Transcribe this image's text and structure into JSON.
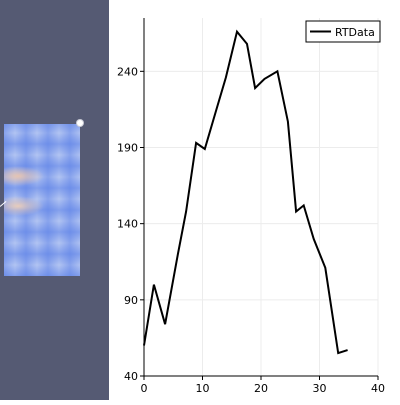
{
  "render_view": {
    "background": "#555a73"
  },
  "chart_data": {
    "type": "line",
    "title": "",
    "xlabel": "",
    "ylabel": "",
    "xlim": [
      0,
      40
    ],
    "ylim": [
      40,
      275
    ],
    "x_ticks": [
      "0",
      "10",
      "20",
      "30",
      "40"
    ],
    "y_ticks": [
      "40",
      "90",
      "140",
      "190",
      "240"
    ],
    "grid": true,
    "legend_position": "top-right",
    "series": [
      {
        "name": "RTData",
        "color": "#000000",
        "x": [
          0,
          1.7,
          3.6,
          5.8,
          7.2,
          8.9,
          10.4,
          12.3,
          14,
          15.9,
          17.6,
          19,
          20.6,
          22.8,
          24.6,
          26,
          27.3,
          29,
          31,
          33.2,
          34.8
        ],
        "y": [
          60,
          100,
          74,
          120,
          148,
          193,
          189,
          214,
          236,
          266,
          258,
          229,
          235,
          240,
          207,
          148,
          152,
          130,
          111,
          55,
          57
        ]
      }
    ]
  }
}
